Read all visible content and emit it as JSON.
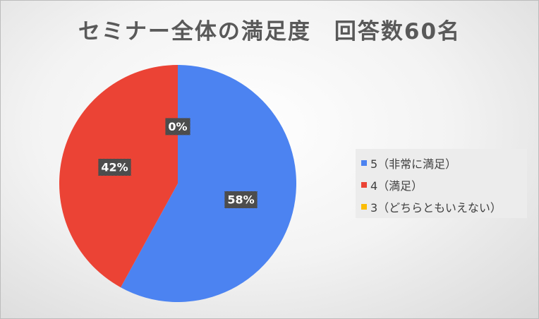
{
  "chart_data": {
    "type": "pie",
    "title": "セミナー全体の満足度　回答数60名",
    "categories": [
      "5（非常に満足）",
      "4（満足）",
      "3（どちらともいえない）"
    ],
    "values": [
      58,
      42,
      0
    ],
    "data_labels": [
      "58%",
      "42%",
      "0%"
    ],
    "colors": [
      "#4c83f1",
      "#eb4335",
      "#fbbc04"
    ],
    "legend": "right",
    "start_angle_deg": 0,
    "direction": "clockwise"
  }
}
